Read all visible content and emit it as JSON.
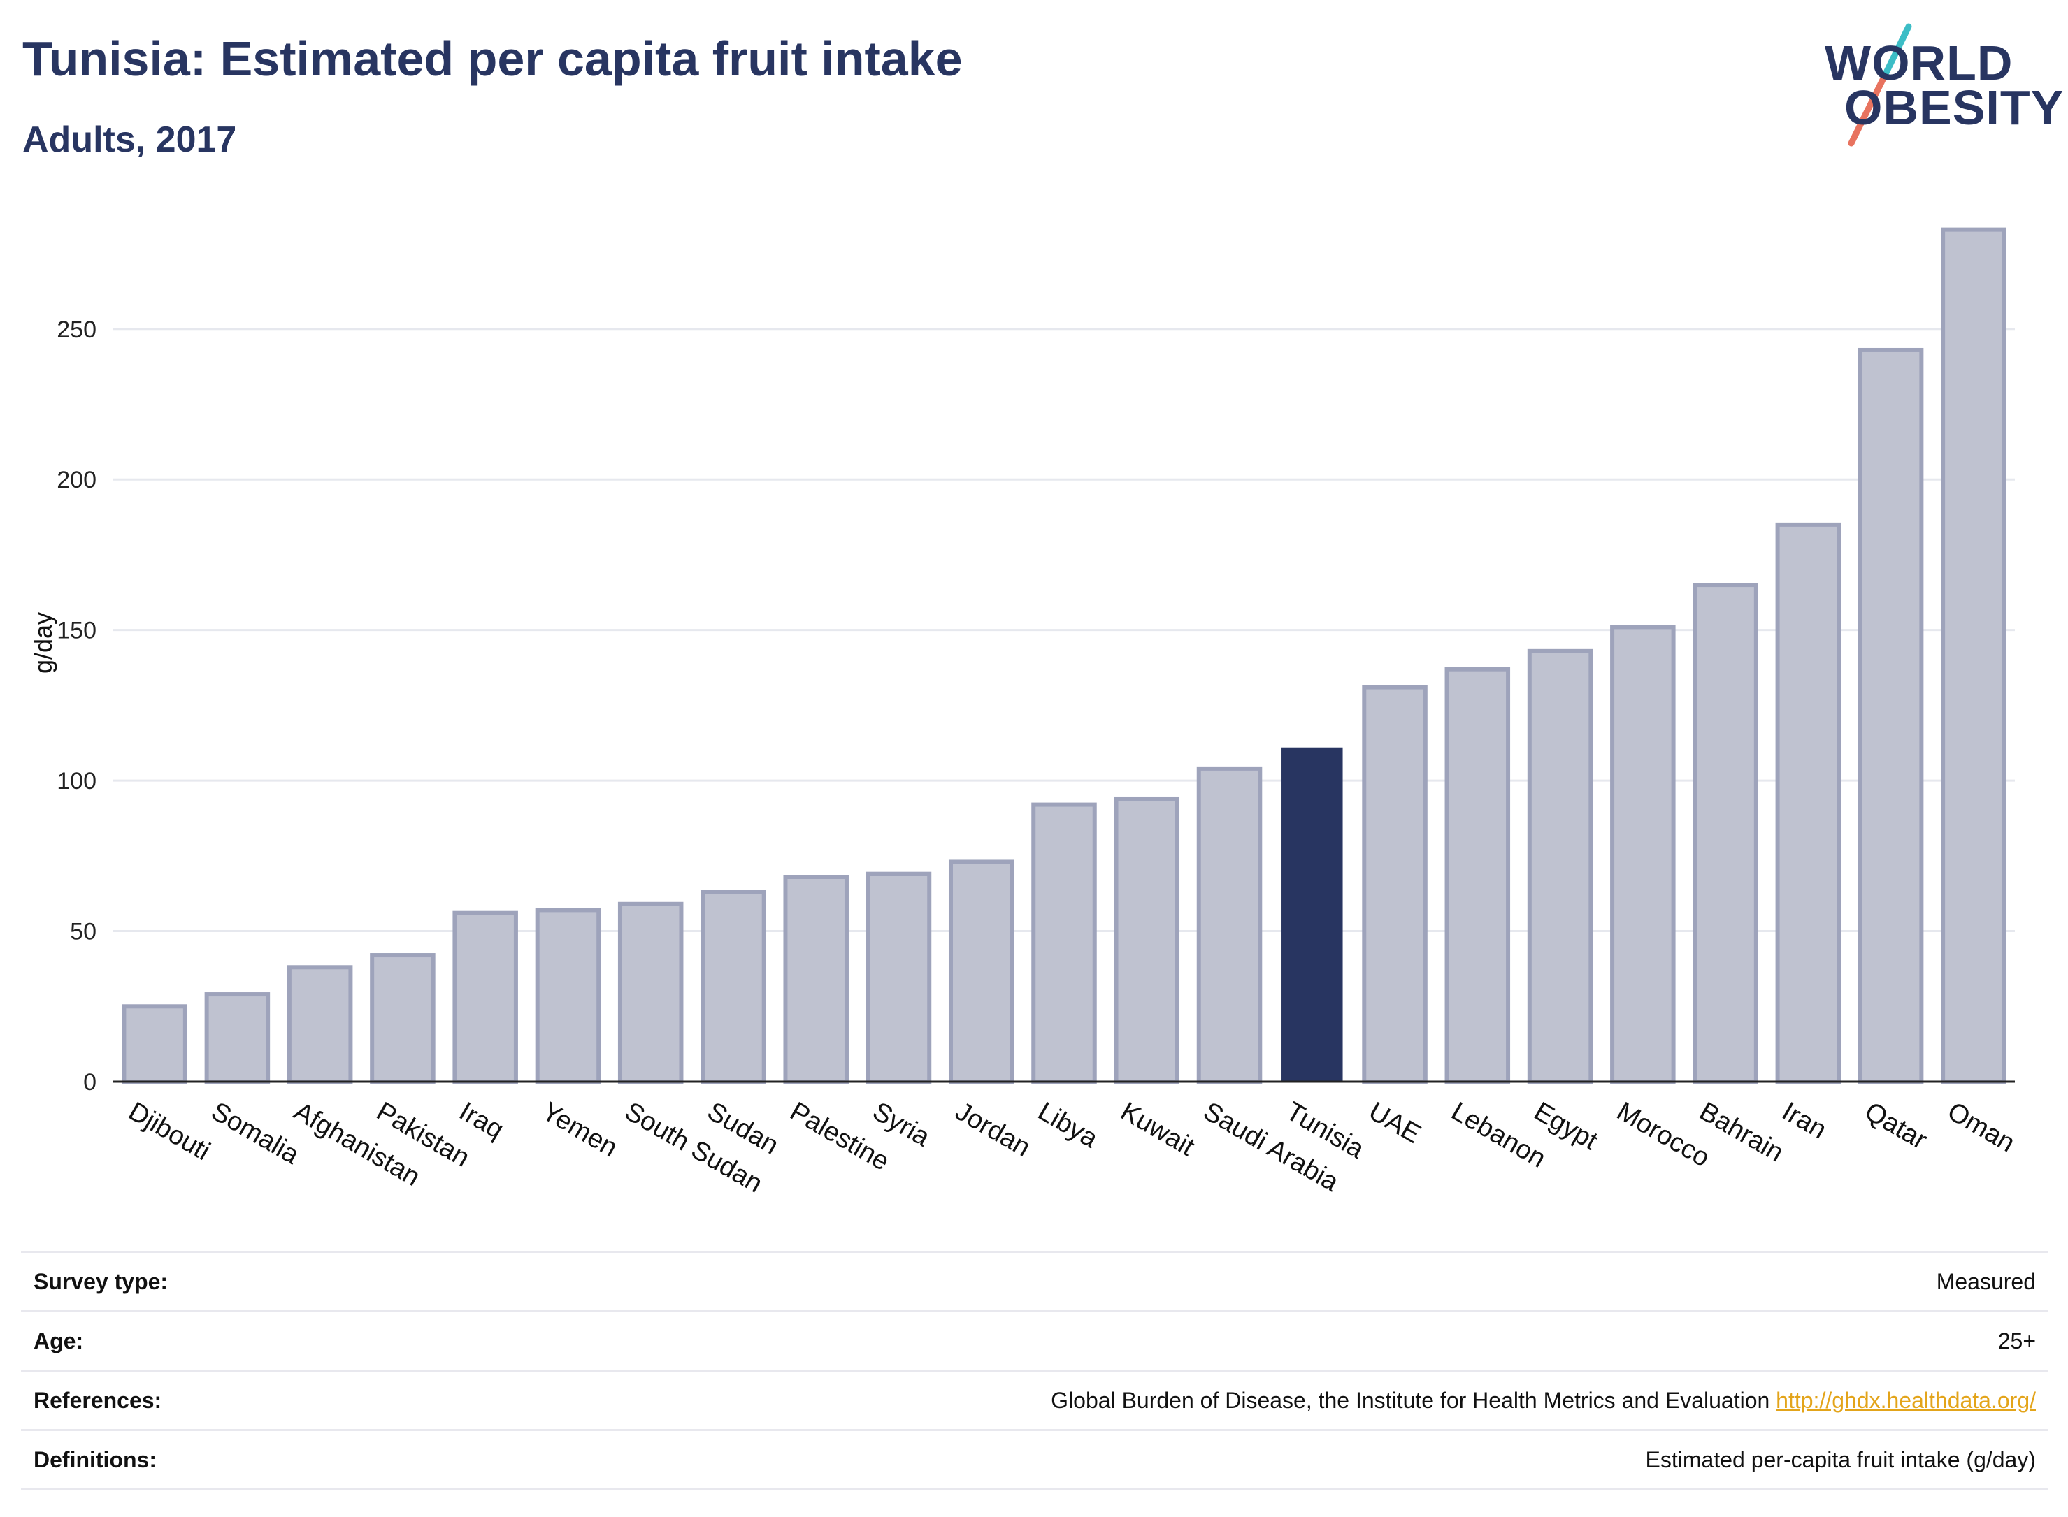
{
  "header": {
    "title": "Tunisia: Estimated per capita fruit intake",
    "subtitle": "Adults, 2017"
  },
  "logo": {
    "line1": "WORLD",
    "line2": "OBESITY",
    "accent_colors": [
      "#3cbdc6",
      "#e8735f"
    ]
  },
  "colors": {
    "bar": "#bfc2d0",
    "bar_border": "#9ea3bb",
    "highlight": "#283561",
    "text": "#283561",
    "grid": "#e6e8ee",
    "link": "#e3a41a"
  },
  "chart_data": {
    "type": "bar",
    "title": "Tunisia: Estimated per capita fruit intake",
    "subtitle": "Adults, 2017",
    "xlabel": "",
    "ylabel": "g/day",
    "ylim": [
      0,
      285
    ],
    "yticks": [
      0,
      50,
      100,
      150,
      200,
      250
    ],
    "grid": true,
    "highlight": "Tunisia",
    "categories": [
      "Djibouti",
      "Somalia",
      "Afghanistan",
      "Pakistan",
      "Iraq",
      "Yemen",
      "South Sudan",
      "Sudan",
      "Palestine",
      "Syria",
      "Jordan",
      "Libya",
      "Kuwait",
      "Saudi Arabia",
      "Tunisia",
      "UAE",
      "Lebanon",
      "Egypt",
      "Morocco",
      "Bahrain",
      "Iran",
      "Qatar",
      "Oman"
    ],
    "values": [
      25,
      29,
      38,
      42,
      56,
      57,
      59,
      63,
      68,
      69,
      73,
      92,
      94,
      104,
      111,
      131,
      137,
      143,
      151,
      165,
      185,
      243,
      283
    ]
  },
  "info": {
    "rows": [
      {
        "label": "Survey type:",
        "value": "Measured",
        "link": ""
      },
      {
        "label": "Age:",
        "value": "25+",
        "link": ""
      },
      {
        "label": "References:",
        "value": "Global Burden of Disease, the Institute for Health Metrics and Evaluation",
        "link": "http://ghdx.healthdata.org/"
      },
      {
        "label": "Definitions:",
        "value": "Estimated per-capita fruit intake (g/day)",
        "link": ""
      }
    ]
  }
}
